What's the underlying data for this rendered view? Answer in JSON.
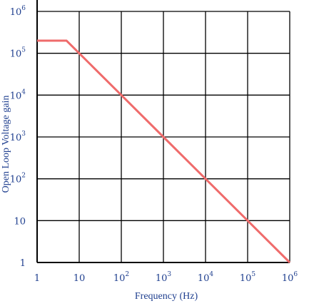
{
  "chart_data": {
    "type": "line",
    "title": "",
    "xlabel": "Frequency (Hz)",
    "ylabel": "Open Loop Voltage gain",
    "x_scale": "log",
    "y_scale": "log",
    "xlim": [
      1,
      1000000
    ],
    "ylim": [
      1,
      1000000
    ],
    "grid": true,
    "x_ticks": [
      {
        "value": 1,
        "base": "1",
        "exp": ""
      },
      {
        "value": 10,
        "base": "10",
        "exp": ""
      },
      {
        "value": 100,
        "base": "10",
        "exp": "2"
      },
      {
        "value": 1000,
        "base": "10",
        "exp": "3"
      },
      {
        "value": 10000,
        "base": "10",
        "exp": "4"
      },
      {
        "value": 100000,
        "base": "10",
        "exp": "5"
      },
      {
        "value": 1000000,
        "base": "10",
        "exp": "6"
      }
    ],
    "y_ticks": [
      {
        "value": 1,
        "base": "1",
        "exp": ""
      },
      {
        "value": 10,
        "base": "10",
        "exp": ""
      },
      {
        "value": 100,
        "base": "10",
        "exp": "2"
      },
      {
        "value": 1000,
        "base": "10",
        "exp": "3"
      },
      {
        "value": 10000,
        "base": "10",
        "exp": "4"
      },
      {
        "value": 100000,
        "base": "10",
        "exp": "5"
      },
      {
        "value": 1000000,
        "base": "10",
        "exp": "6"
      }
    ],
    "series": [
      {
        "color": "#ef6b6b",
        "x": [
          1,
          5,
          10,
          100,
          1000,
          10000,
          100000,
          1000000
        ],
        "y": [
          200000,
          200000,
          100000,
          10000,
          1000,
          100,
          10,
          1
        ]
      }
    ],
    "colors": {
      "grid": "#000000",
      "tick_text": "#1f3f8f",
      "line": "#ef6b6b"
    }
  }
}
